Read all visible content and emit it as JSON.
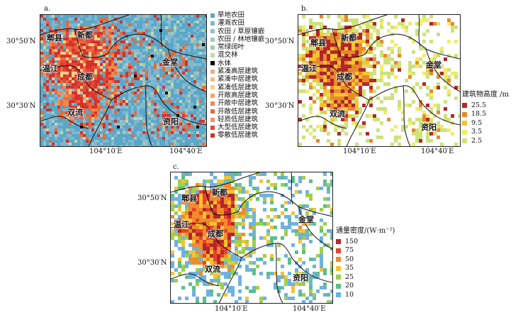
{
  "panels": {
    "a": {
      "label": "a."
    },
    "b": {
      "label": "b."
    },
    "c": {
      "label": "c."
    }
  },
  "axes": {
    "lat_top": "30°50′N",
    "lat_bottom": "30°30′N",
    "lon_left": "104°10′E",
    "lon_right": "104°40′E"
  },
  "cities": {
    "pixian": "郫县",
    "xindu": "新都",
    "wenjiang": "温江",
    "chengdu": "成都",
    "jintang": "金堂",
    "shuangliu": "双流",
    "jianyang": "资阳"
  },
  "legend_a": [
    {
      "label": "旱地农田",
      "color": "#5aa7c9"
    },
    {
      "label": "灌溉农田",
      "color": "#7fb7cf"
    },
    {
      "label": "农田 / 草原镶嵌",
      "color": "#93c0c9"
    },
    {
      "label": "农田 / 林地镶嵌",
      "color": "#a9c9b8"
    },
    {
      "label": "常绿阔叶",
      "color": "#9ecbb0"
    },
    {
      "label": "混交林",
      "color": "#c3d9a2"
    },
    {
      "label": "水体",
      "color": "#000000"
    },
    {
      "label": "紧凑高层建筑",
      "color": "#f6a98c"
    },
    {
      "label": "紧凑中层建筑",
      "color": "#f3bb86"
    },
    {
      "label": "紧凑低层建筑",
      "color": "#f5d08b"
    },
    {
      "label": "开敞高层建筑",
      "color": "#f4a460"
    },
    {
      "label": "开敞中层建筑",
      "color": "#f08b4e"
    },
    {
      "label": "开敞低层建筑",
      "color": "#e86a3a"
    },
    {
      "label": "轻质低层建筑",
      "color": "#f29468"
    },
    {
      "label": "大型低层建筑",
      "color": "#e04a3a"
    },
    {
      "label": "零散低层建筑",
      "color": "#d7302a"
    }
  ],
  "legend_b": {
    "title": "建筑物高度 /m",
    "items": [
      {
        "label": "25.5",
        "color": "#b3262b"
      },
      {
        "label": "18.5",
        "color": "#e8892d"
      },
      {
        "label": "9.5",
        "color": "#f4c430"
      },
      {
        "label": "3.5",
        "color": "#f2ec6a"
      },
      {
        "label": "2.5",
        "color": "#cfe27a"
      }
    ]
  },
  "legend_c": {
    "title": "通量密度/(W·m⁻²)",
    "items": [
      {
        "label": "150",
        "color": "#b3262b"
      },
      {
        "label": "75",
        "color": "#e8402e"
      },
      {
        "label": "50",
        "color": "#f08b2a"
      },
      {
        "label": "35",
        "color": "#f4c430"
      },
      {
        "label": "25",
        "color": "#9fcf4a"
      },
      {
        "label": "20",
        "color": "#5bbf8a"
      },
      {
        "label": "10",
        "color": "#6fb2e0"
      }
    ]
  }
}
